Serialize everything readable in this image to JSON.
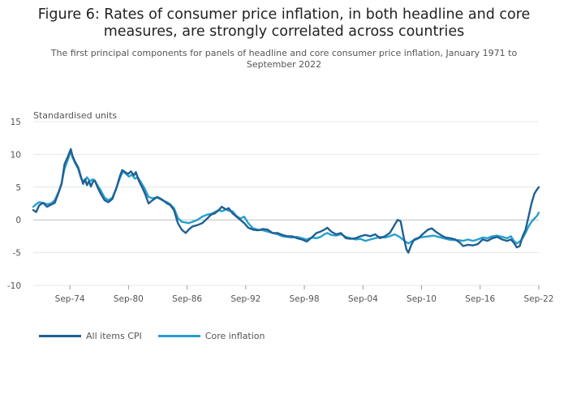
{
  "header": {
    "title": "Figure 6: Rates of consumer price inflation, in both headline and core measures, are strongly correlated across countries",
    "subtitle": "The first principal components for panels of headline and core consumer price inflation, January 1971 to September 2022"
  },
  "chart_data": {
    "type": "line",
    "title": "Figure 6: Rates of consumer price inflation, in both headline and core measures, are strongly correlated across countries",
    "subtitle": "The first principal components for panels of headline and core consumer price inflation, January 1971 to September 2022",
    "ylabel": "Standardised units",
    "xlabel": "",
    "ylim": [
      -10,
      15
    ],
    "xlim": [
      1971.0,
      2022.75
    ],
    "x_ticks": [
      {
        "x": 1974.75,
        "label": "Sep-74"
      },
      {
        "x": 1980.75,
        "label": "Sep-80"
      },
      {
        "x": 1986.75,
        "label": "Sep-86"
      },
      {
        "x": 1992.75,
        "label": "Sep-92"
      },
      {
        "x": 1998.75,
        "label": "Sep-98"
      },
      {
        "x": 2004.75,
        "label": "Sep-04"
      },
      {
        "x": 2010.75,
        "label": "Sep-10"
      },
      {
        "x": 2016.75,
        "label": "Sep-16"
      },
      {
        "x": 2022.75,
        "label": "Sep-22"
      }
    ],
    "y_ticks": [
      15,
      10,
      5,
      0,
      -5,
      -10
    ],
    "grid": "horizontal",
    "legend": "bottom-left",
    "series": [
      {
        "name": "All items CPI",
        "color": "#206095",
        "points": [
          [
            1971.0,
            1.5
          ],
          [
            1971.3,
            1.2
          ],
          [
            1971.6,
            2.2
          ],
          [
            1972.0,
            2.6
          ],
          [
            1972.4,
            2.0
          ],
          [
            1972.8,
            2.3
          ],
          [
            1973.2,
            2.6
          ],
          [
            1973.6,
            4.2
          ],
          [
            1973.9,
            5.5
          ],
          [
            1974.2,
            8.5
          ],
          [
            1974.5,
            9.5
          ],
          [
            1974.85,
            10.8
          ],
          [
            1975.0,
            9.8
          ],
          [
            1975.3,
            8.8
          ],
          [
            1975.6,
            8.0
          ],
          [
            1975.9,
            6.5
          ],
          [
            1976.1,
            5.5
          ],
          [
            1976.3,
            6.2
          ],
          [
            1976.5,
            5.3
          ],
          [
            1976.7,
            5.9
          ],
          [
            1976.9,
            5.1
          ],
          [
            1977.1,
            5.8
          ],
          [
            1977.3,
            6.0
          ],
          [
            1977.6,
            4.9
          ],
          [
            1977.9,
            4.0
          ],
          [
            1978.3,
            3.0
          ],
          [
            1978.7,
            2.7
          ],
          [
            1979.1,
            3.2
          ],
          [
            1979.5,
            4.8
          ],
          [
            1979.9,
            6.8
          ],
          [
            1980.1,
            7.6
          ],
          [
            1980.4,
            7.3
          ],
          [
            1980.7,
            7.0
          ],
          [
            1981.0,
            7.4
          ],
          [
            1981.3,
            6.8
          ],
          [
            1981.5,
            7.3
          ],
          [
            1981.8,
            6.0
          ],
          [
            1982.2,
            4.8
          ],
          [
            1982.5,
            3.8
          ],
          [
            1982.8,
            2.5
          ],
          [
            1983.2,
            3.0
          ],
          [
            1983.7,
            3.5
          ],
          [
            1984.2,
            3.1
          ],
          [
            1984.7,
            2.5
          ],
          [
            1985.0,
            2.3
          ],
          [
            1985.4,
            1.5
          ],
          [
            1985.8,
            -0.5
          ],
          [
            1986.2,
            -1.5
          ],
          [
            1986.6,
            -2.0
          ],
          [
            1986.9,
            -1.5
          ],
          [
            1987.3,
            -1.0
          ],
          [
            1987.8,
            -0.8
          ],
          [
            1988.3,
            -0.5
          ],
          [
            1988.8,
            0.2
          ],
          [
            1989.2,
            0.8
          ],
          [
            1989.6,
            1.0
          ],
          [
            1990.0,
            1.5
          ],
          [
            1990.3,
            2.0
          ],
          [
            1990.7,
            1.6
          ],
          [
            1991.0,
            1.8
          ],
          [
            1991.4,
            1.0
          ],
          [
            1991.8,
            0.5
          ],
          [
            1992.2,
            0.0
          ],
          [
            1992.6,
            -0.5
          ],
          [
            1993.0,
            -1.2
          ],
          [
            1993.5,
            -1.5
          ],
          [
            1994.0,
            -1.6
          ],
          [
            1994.5,
            -1.4
          ],
          [
            1995.0,
            -1.5
          ],
          [
            1995.5,
            -2.0
          ],
          [
            1996.0,
            -2.0
          ],
          [
            1996.5,
            -2.3
          ],
          [
            1997.0,
            -2.5
          ],
          [
            1997.5,
            -2.5
          ],
          [
            1998.0,
            -2.8
          ],
          [
            1998.5,
            -3.0
          ],
          [
            1999.0,
            -3.3
          ],
          [
            1999.5,
            -2.7
          ],
          [
            2000.0,
            -2.0
          ],
          [
            2000.4,
            -1.8
          ],
          [
            2000.8,
            -1.5
          ],
          [
            2001.1,
            -1.2
          ],
          [
            2001.5,
            -1.8
          ],
          [
            2002.0,
            -2.2
          ],
          [
            2002.5,
            -2.0
          ],
          [
            2003.0,
            -2.8
          ],
          [
            2003.5,
            -2.9
          ],
          [
            2004.0,
            -2.8
          ],
          [
            2004.5,
            -2.5
          ],
          [
            2005.0,
            -2.3
          ],
          [
            2005.5,
            -2.5
          ],
          [
            2006.0,
            -2.2
          ],
          [
            2006.5,
            -2.8
          ],
          [
            2007.0,
            -2.5
          ],
          [
            2007.5,
            -2.0
          ],
          [
            2007.9,
            -1.0
          ],
          [
            2008.3,
            0.0
          ],
          [
            2008.6,
            -0.2
          ],
          [
            2008.9,
            -2.5
          ],
          [
            2009.2,
            -4.5
          ],
          [
            2009.4,
            -5.0
          ],
          [
            2009.7,
            -3.8
          ],
          [
            2010.0,
            -3.0
          ],
          [
            2010.5,
            -2.7
          ],
          [
            2011.0,
            -2.0
          ],
          [
            2011.4,
            -1.5
          ],
          [
            2011.8,
            -1.3
          ],
          [
            2012.2,
            -1.8
          ],
          [
            2012.7,
            -2.3
          ],
          [
            2013.2,
            -2.7
          ],
          [
            2013.7,
            -2.8
          ],
          [
            2014.2,
            -3.0
          ],
          [
            2014.7,
            -3.5
          ],
          [
            2015.0,
            -4.0
          ],
          [
            2015.5,
            -3.8
          ],
          [
            2016.0,
            -3.9
          ],
          [
            2016.5,
            -3.7
          ],
          [
            2017.0,
            -3.0
          ],
          [
            2017.5,
            -3.2
          ],
          [
            2018.0,
            -2.8
          ],
          [
            2018.5,
            -2.6
          ],
          [
            2019.0,
            -3.0
          ],
          [
            2019.5,
            -3.2
          ],
          [
            2019.9,
            -3.0
          ],
          [
            2020.2,
            -3.5
          ],
          [
            2020.5,
            -4.2
          ],
          [
            2020.8,
            -4.0
          ],
          [
            2021.1,
            -2.5
          ],
          [
            2021.4,
            -1.5
          ],
          [
            2021.7,
            0.5
          ],
          [
            2022.0,
            2.5
          ],
          [
            2022.3,
            4.0
          ],
          [
            2022.55,
            4.6
          ],
          [
            2022.75,
            5.0
          ]
        ]
      },
      {
        "name": "Core inflation",
        "color": "#27a0cc",
        "points": [
          [
            1971.0,
            2.0
          ],
          [
            1971.3,
            2.4
          ],
          [
            1971.6,
            2.7
          ],
          [
            1972.0,
            2.6
          ],
          [
            1972.4,
            2.4
          ],
          [
            1972.8,
            2.5
          ],
          [
            1973.2,
            3.0
          ],
          [
            1973.6,
            4.3
          ],
          [
            1973.9,
            5.6
          ],
          [
            1974.2,
            7.8
          ],
          [
            1974.5,
            9.0
          ],
          [
            1974.85,
            10.5
          ],
          [
            1975.0,
            9.6
          ],
          [
            1975.3,
            8.6
          ],
          [
            1975.6,
            7.8
          ],
          [
            1975.9,
            6.3
          ],
          [
            1976.2,
            5.8
          ],
          [
            1976.5,
            6.5
          ],
          [
            1976.8,
            5.9
          ],
          [
            1977.1,
            6.2
          ],
          [
            1977.3,
            6.0
          ],
          [
            1977.6,
            5.2
          ],
          [
            1977.9,
            4.5
          ],
          [
            1978.3,
            3.4
          ],
          [
            1978.7,
            3.0
          ],
          [
            1979.1,
            3.4
          ],
          [
            1979.5,
            4.8
          ],
          [
            1979.9,
            6.5
          ],
          [
            1980.2,
            7.4
          ],
          [
            1980.5,
            7.0
          ],
          [
            1980.8,
            6.6
          ],
          [
            1981.1,
            6.9
          ],
          [
            1981.4,
            6.3
          ],
          [
            1981.7,
            6.5
          ],
          [
            1982.0,
            5.8
          ],
          [
            1982.4,
            4.8
          ],
          [
            1982.8,
            3.5
          ],
          [
            1983.2,
            3.3
          ],
          [
            1983.7,
            3.4
          ],
          [
            1984.2,
            3.0
          ],
          [
            1984.7,
            2.7
          ],
          [
            1985.0,
            2.4
          ],
          [
            1985.4,
            1.8
          ],
          [
            1985.8,
            0.3
          ],
          [
            1986.2,
            -0.3
          ],
          [
            1986.6,
            -0.4
          ],
          [
            1986.9,
            -0.5
          ],
          [
            1987.3,
            -0.3
          ],
          [
            1987.8,
            0.0
          ],
          [
            1988.3,
            0.5
          ],
          [
            1988.8,
            0.8
          ],
          [
            1989.2,
            0.9
          ],
          [
            1989.6,
            1.2
          ],
          [
            1990.0,
            1.5
          ],
          [
            1990.3,
            1.3
          ],
          [
            1990.7,
            1.6
          ],
          [
            1991.0,
            1.4
          ],
          [
            1991.4,
            1.3
          ],
          [
            1991.8,
            0.6
          ],
          [
            1992.2,
            0.2
          ],
          [
            1992.6,
            0.5
          ],
          [
            1993.0,
            -0.5
          ],
          [
            1993.5,
            -1.3
          ],
          [
            1994.0,
            -1.5
          ],
          [
            1994.5,
            -1.6
          ],
          [
            1995.0,
            -1.8
          ],
          [
            1995.5,
            -2.0
          ],
          [
            1996.0,
            -2.2
          ],
          [
            1996.5,
            -2.5
          ],
          [
            1997.0,
            -2.6
          ],
          [
            1997.5,
            -2.7
          ],
          [
            1998.0,
            -2.6
          ],
          [
            1998.5,
            -2.8
          ],
          [
            1999.0,
            -3.0
          ],
          [
            1999.5,
            -2.7
          ],
          [
            2000.0,
            -2.8
          ],
          [
            2000.4,
            -2.6
          ],
          [
            2000.8,
            -2.2
          ],
          [
            2001.1,
            -2.0
          ],
          [
            2001.5,
            -2.3
          ],
          [
            2002.0,
            -2.4
          ],
          [
            2002.5,
            -2.2
          ],
          [
            2003.0,
            -2.6
          ],
          [
            2003.5,
            -2.8
          ],
          [
            2004.0,
            -3.0
          ],
          [
            2004.5,
            -2.9
          ],
          [
            2005.0,
            -3.2
          ],
          [
            2005.5,
            -3.0
          ],
          [
            2006.0,
            -2.8
          ],
          [
            2006.5,
            -2.6
          ],
          [
            2007.0,
            -2.7
          ],
          [
            2007.5,
            -2.5
          ],
          [
            2008.0,
            -2.2
          ],
          [
            2008.5,
            -2.6
          ],
          [
            2009.0,
            -3.2
          ],
          [
            2009.4,
            -3.6
          ],
          [
            2009.8,
            -3.2
          ],
          [
            2010.2,
            -3.0
          ],
          [
            2010.6,
            -2.7
          ],
          [
            2011.0,
            -2.6
          ],
          [
            2011.5,
            -2.5
          ],
          [
            2012.0,
            -2.4
          ],
          [
            2012.5,
            -2.6
          ],
          [
            2013.0,
            -2.8
          ],
          [
            2013.5,
            -3.0
          ],
          [
            2014.0,
            -3.1
          ],
          [
            2014.5,
            -3.1
          ],
          [
            2015.0,
            -3.2
          ],
          [
            2015.5,
            -3.0
          ],
          [
            2016.0,
            -3.2
          ],
          [
            2016.5,
            -3.0
          ],
          [
            2017.0,
            -2.7
          ],
          [
            2017.5,
            -2.8
          ],
          [
            2018.0,
            -2.5
          ],
          [
            2018.5,
            -2.4
          ],
          [
            2019.0,
            -2.6
          ],
          [
            2019.5,
            -2.8
          ],
          [
            2019.9,
            -2.5
          ],
          [
            2020.2,
            -3.2
          ],
          [
            2020.5,
            -3.6
          ],
          [
            2020.8,
            -3.3
          ],
          [
            2021.1,
            -2.8
          ],
          [
            2021.4,
            -2.0
          ],
          [
            2021.7,
            -1.0
          ],
          [
            2022.0,
            -0.3
          ],
          [
            2022.3,
            0.2
          ],
          [
            2022.55,
            0.6
          ],
          [
            2022.75,
            1.1
          ]
        ]
      }
    ]
  }
}
